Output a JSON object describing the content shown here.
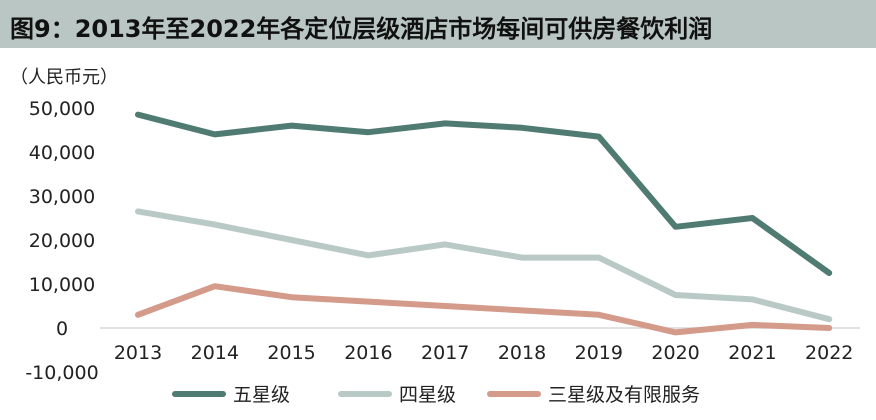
{
  "chart_data": {
    "type": "line",
    "title": "图9：2013年至2022年各定位层级酒店市场每间可供房餐饮利润",
    "unit": "（人民币元）",
    "x": [
      "2013",
      "2014",
      "2015",
      "2016",
      "2017",
      "2018",
      "2019",
      "2020",
      "2021",
      "2022"
    ],
    "ylim": [
      -10000,
      50000
    ],
    "yticks": [
      "50,000",
      "40,000",
      "30,000",
      "20,000",
      "10,000",
      "0",
      "-10,000"
    ],
    "ytick_values": [
      50000,
      40000,
      30000,
      20000,
      10000,
      0,
      -10000
    ],
    "legend_position": "bottom",
    "series": [
      {
        "name": "五星级",
        "color": "#4f7b72",
        "values": [
          48500,
          44000,
          46000,
          44500,
          46500,
          45500,
          43500,
          23000,
          25000,
          12500
        ]
      },
      {
        "name": "四星级",
        "color": "#b9c9c6",
        "values": [
          26500,
          23500,
          20000,
          16500,
          19000,
          16000,
          16000,
          7500,
          6500,
          2000
        ]
      },
      {
        "name": "三星级及有限服务",
        "color": "#d49a8a",
        "values": [
          3000,
          9500,
          7000,
          6000,
          5000,
          4000,
          3000,
          -1000,
          700,
          0
        ]
      }
    ]
  }
}
